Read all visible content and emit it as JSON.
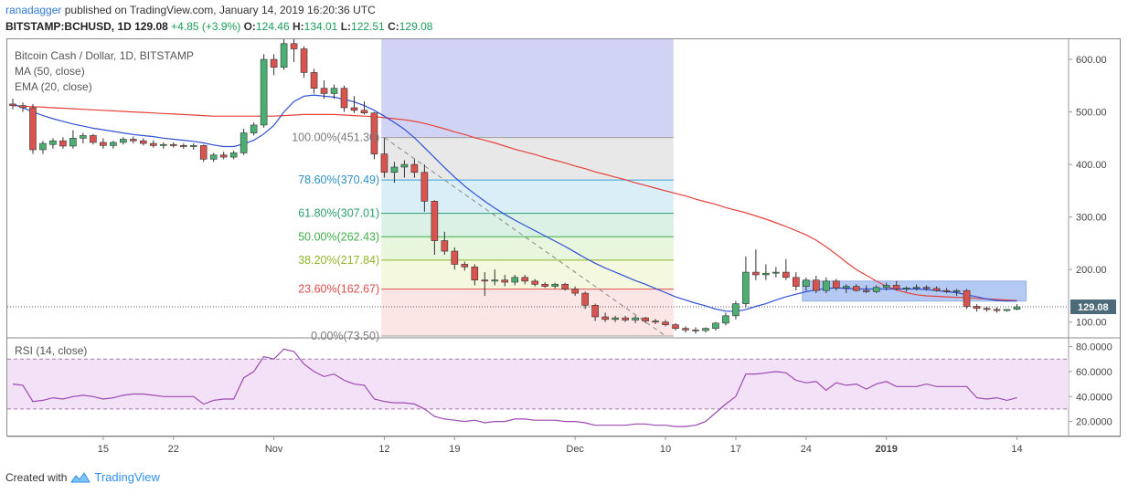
{
  "header": {
    "author": "ranadagger",
    "published_text": "published on TradingView.com, January 14, 2019 16:20:36 UTC",
    "symbol": "BITSTAMP:BCHUSD, 1D",
    "price": "129.08",
    "change": "+4.85 (+3.9%)",
    "ohlc": [
      {
        "k": "O:",
        "v": "124.46"
      },
      {
        "k": "H:",
        "v": "134.01"
      },
      {
        "k": "L:",
        "v": "122.51"
      },
      {
        "k": "C:",
        "v": "129.08"
      }
    ]
  },
  "legend": {
    "title": "Bitcoin Cash / Dollar, 1D, BITSTAMP",
    "ma": "MA (50, close)",
    "ema": "EMA (20, close)",
    "rsi": "RSI (14, close)"
  },
  "footer": {
    "created_with": "Created with",
    "brand": "TradingView"
  },
  "colors": {
    "up": "#4caf72",
    "down": "#d9534f",
    "ma": "#e8413a",
    "ema": "#2f4fd8",
    "rsi": "#9c4ab0",
    "fib_band": "#b9bbef",
    "range_box": "#7aa0e8"
  },
  "chart_data": [
    {
      "type": "candlestick",
      "title": "Bitcoin Cash / Dollar, 1D, BITSTAMP",
      "ylim": [
        70,
        640
      ],
      "y_ticks": [
        100,
        200,
        300,
        400,
        500,
        600
      ],
      "y_tick_labels": [
        "100.00",
        "200.00",
        "300.00",
        "400.00",
        "500.00",
        "600.00"
      ],
      "x_ticks": [
        {
          "i": 9,
          "label": "15"
        },
        {
          "i": 16,
          "label": "22"
        },
        {
          "i": 26,
          "label": "Nov"
        },
        {
          "i": 37,
          "label": "12"
        },
        {
          "i": 44,
          "label": "19"
        },
        {
          "i": 56,
          "label": "Dec"
        },
        {
          "i": 65,
          "label": "10"
        },
        {
          "i": 72,
          "label": "17"
        },
        {
          "i": 79,
          "label": "24"
        },
        {
          "i": 87,
          "label": "2019"
        },
        {
          "i": 100,
          "label": "14"
        }
      ],
      "last_price_label": "129.08",
      "last_price": 129.08,
      "candles": [
        {
          "o": 515,
          "h": 525,
          "l": 505,
          "c": 512
        },
        {
          "o": 512,
          "h": 518,
          "l": 500,
          "c": 508
        },
        {
          "o": 508,
          "h": 515,
          "l": 420,
          "c": 428
        },
        {
          "o": 428,
          "h": 445,
          "l": 420,
          "c": 440
        },
        {
          "o": 438,
          "h": 450,
          "l": 430,
          "c": 445
        },
        {
          "o": 445,
          "h": 452,
          "l": 430,
          "c": 435
        },
        {
          "o": 435,
          "h": 465,
          "l": 430,
          "c": 450
        },
        {
          "o": 450,
          "h": 460,
          "l": 440,
          "c": 455
        },
        {
          "o": 455,
          "h": 458,
          "l": 438,
          "c": 442
        },
        {
          "o": 442,
          "h": 450,
          "l": 430,
          "c": 436
        },
        {
          "o": 436,
          "h": 445,
          "l": 430,
          "c": 442
        },
        {
          "o": 442,
          "h": 452,
          "l": 438,
          "c": 448
        },
        {
          "o": 448,
          "h": 453,
          "l": 440,
          "c": 445
        },
        {
          "o": 445,
          "h": 450,
          "l": 436,
          "c": 440
        },
        {
          "o": 440,
          "h": 446,
          "l": 432,
          "c": 436
        },
        {
          "o": 436,
          "h": 442,
          "l": 430,
          "c": 438
        },
        {
          "o": 438,
          "h": 442,
          "l": 432,
          "c": 436
        },
        {
          "o": 436,
          "h": 440,
          "l": 430,
          "c": 434
        },
        {
          "o": 434,
          "h": 440,
          "l": 428,
          "c": 436
        },
        {
          "o": 436,
          "h": 438,
          "l": 405,
          "c": 410
        },
        {
          "o": 410,
          "h": 422,
          "l": 405,
          "c": 418
        },
        {
          "o": 418,
          "h": 424,
          "l": 410,
          "c": 414
        },
        {
          "o": 414,
          "h": 426,
          "l": 410,
          "c": 422
        },
        {
          "o": 422,
          "h": 468,
          "l": 418,
          "c": 460
        },
        {
          "o": 460,
          "h": 480,
          "l": 455,
          "c": 475
        },
        {
          "o": 475,
          "h": 610,
          "l": 470,
          "c": 600
        },
        {
          "o": 600,
          "h": 610,
          "l": 570,
          "c": 585
        },
        {
          "o": 585,
          "h": 640,
          "l": 580,
          "c": 630
        },
        {
          "o": 630,
          "h": 640,
          "l": 595,
          "c": 620
        },
        {
          "o": 620,
          "h": 625,
          "l": 565,
          "c": 575
        },
        {
          "o": 575,
          "h": 582,
          "l": 535,
          "c": 545
        },
        {
          "o": 545,
          "h": 560,
          "l": 525,
          "c": 535
        },
        {
          "o": 535,
          "h": 552,
          "l": 525,
          "c": 545
        },
        {
          "o": 545,
          "h": 550,
          "l": 500,
          "c": 508
        },
        {
          "o": 508,
          "h": 530,
          "l": 498,
          "c": 503
        },
        {
          "o": 503,
          "h": 520,
          "l": 495,
          "c": 498
        },
        {
          "o": 498,
          "h": 500,
          "l": 410,
          "c": 420
        },
        {
          "o": 420,
          "h": 450,
          "l": 375,
          "c": 385
        },
        {
          "o": 385,
          "h": 405,
          "l": 365,
          "c": 395
        },
        {
          "o": 395,
          "h": 408,
          "l": 375,
          "c": 400
        },
        {
          "o": 400,
          "h": 410,
          "l": 375,
          "c": 385
        },
        {
          "o": 385,
          "h": 400,
          "l": 310,
          "c": 330
        },
        {
          "o": 330,
          "h": 332,
          "l": 228,
          "c": 255
        },
        {
          "o": 255,
          "h": 272,
          "l": 228,
          "c": 235
        },
        {
          "o": 235,
          "h": 242,
          "l": 200,
          "c": 210
        },
        {
          "o": 210,
          "h": 215,
          "l": 198,
          "c": 205
        },
        {
          "o": 205,
          "h": 210,
          "l": 170,
          "c": 180
        },
        {
          "o": 180,
          "h": 195,
          "l": 150,
          "c": 178
        },
        {
          "o": 178,
          "h": 200,
          "l": 170,
          "c": 180
        },
        {
          "o": 180,
          "h": 190,
          "l": 168,
          "c": 176
        },
        {
          "o": 176,
          "h": 190,
          "l": 170,
          "c": 185
        },
        {
          "o": 185,
          "h": 190,
          "l": 172,
          "c": 178
        },
        {
          "o": 178,
          "h": 182,
          "l": 168,
          "c": 172
        },
        {
          "o": 172,
          "h": 176,
          "l": 165,
          "c": 168
        },
        {
          "o": 168,
          "h": 175,
          "l": 164,
          "c": 172
        },
        {
          "o": 172,
          "h": 175,
          "l": 160,
          "c": 163
        },
        {
          "o": 163,
          "h": 168,
          "l": 150,
          "c": 155
        },
        {
          "o": 155,
          "h": 158,
          "l": 125,
          "c": 132
        },
        {
          "o": 132,
          "h": 135,
          "l": 102,
          "c": 110
        },
        {
          "o": 110,
          "h": 118,
          "l": 100,
          "c": 105
        },
        {
          "o": 105,
          "h": 112,
          "l": 100,
          "c": 108
        },
        {
          "o": 108,
          "h": 112,
          "l": 100,
          "c": 104
        },
        {
          "o": 104,
          "h": 112,
          "l": 98,
          "c": 108
        },
        {
          "o": 108,
          "h": 110,
          "l": 98,
          "c": 102
        },
        {
          "o": 102,
          "h": 106,
          "l": 96,
          "c": 100
        },
        {
          "o": 100,
          "h": 104,
          "l": 92,
          "c": 95
        },
        {
          "o": 95,
          "h": 98,
          "l": 84,
          "c": 88
        },
        {
          "o": 88,
          "h": 92,
          "l": 80,
          "c": 85
        },
        {
          "o": 85,
          "h": 90,
          "l": 78,
          "c": 84
        },
        {
          "o": 84,
          "h": 90,
          "l": 80,
          "c": 88
        },
        {
          "o": 88,
          "h": 100,
          "l": 84,
          "c": 98
        },
        {
          "o": 98,
          "h": 118,
          "l": 94,
          "c": 112
        },
        {
          "o": 112,
          "h": 140,
          "l": 105,
          "c": 135
        },
        {
          "o": 135,
          "h": 225,
          "l": 128,
          "c": 195
        },
        {
          "o": 195,
          "h": 238,
          "l": 180,
          "c": 190
        },
        {
          "o": 190,
          "h": 210,
          "l": 180,
          "c": 193
        },
        {
          "o": 193,
          "h": 205,
          "l": 185,
          "c": 195
        },
        {
          "o": 195,
          "h": 220,
          "l": 180,
          "c": 185
        },
        {
          "o": 185,
          "h": 195,
          "l": 160,
          "c": 168
        },
        {
          "o": 168,
          "h": 185,
          "l": 160,
          "c": 180
        },
        {
          "o": 180,
          "h": 188,
          "l": 155,
          "c": 160
        },
        {
          "o": 160,
          "h": 185,
          "l": 155,
          "c": 178
        },
        {
          "o": 178,
          "h": 182,
          "l": 160,
          "c": 165
        },
        {
          "o": 165,
          "h": 172,
          "l": 155,
          "c": 168
        },
        {
          "o": 168,
          "h": 172,
          "l": 158,
          "c": 160
        },
        {
          "o": 160,
          "h": 170,
          "l": 155,
          "c": 158
        },
        {
          "o": 158,
          "h": 170,
          "l": 155,
          "c": 166
        },
        {
          "o": 166,
          "h": 175,
          "l": 160,
          "c": 170
        },
        {
          "o": 170,
          "h": 178,
          "l": 160,
          "c": 163
        },
        {
          "o": 163,
          "h": 168,
          "l": 158,
          "c": 165
        },
        {
          "o": 165,
          "h": 172,
          "l": 160,
          "c": 166
        },
        {
          "o": 166,
          "h": 170,
          "l": 160,
          "c": 164
        },
        {
          "o": 164,
          "h": 168,
          "l": 158,
          "c": 160
        },
        {
          "o": 160,
          "h": 165,
          "l": 155,
          "c": 158
        },
        {
          "o": 158,
          "h": 163,
          "l": 150,
          "c": 160
        },
        {
          "o": 160,
          "h": 163,
          "l": 125,
          "c": 130
        },
        {
          "o": 130,
          "h": 134,
          "l": 120,
          "c": 126
        },
        {
          "o": 126,
          "h": 130,
          "l": 120,
          "c": 124
        },
        {
          "o": 124,
          "h": 128,
          "l": 118,
          "c": 122
        },
        {
          "o": 122,
          "h": 124,
          "l": 120,
          "c": 124
        },
        {
          "o": 124.46,
          "h": 134.01,
          "l": 122.51,
          "c": 129.08
        }
      ],
      "ma_50": [
        512,
        511,
        510,
        509,
        508,
        507,
        506,
        505,
        504,
        503,
        502,
        501,
        500,
        499,
        498,
        497,
        496,
        495,
        494,
        493,
        492,
        492,
        492,
        492,
        492,
        492,
        492,
        493,
        494,
        495,
        495,
        495,
        495,
        494,
        493,
        492,
        491,
        489,
        487,
        485,
        482,
        478,
        473,
        468,
        462,
        457,
        451,
        446,
        441,
        435,
        429,
        424,
        419,
        413,
        408,
        403,
        397,
        392,
        386,
        381,
        376,
        371,
        365,
        360,
        355,
        350,
        345,
        340,
        334,
        329,
        324,
        318,
        313,
        308,
        302,
        296,
        289,
        282,
        274,
        266,
        256,
        243,
        229,
        214,
        200,
        189,
        178,
        168,
        161,
        156,
        152,
        150,
        149,
        148,
        147,
        147,
        145,
        144,
        143,
        142,
        141
      ],
      "ema_20": [
        515,
        508,
        500,
        493,
        487,
        482,
        477,
        473,
        469,
        466,
        463,
        460,
        457,
        455,
        453,
        450,
        448,
        446,
        444,
        441,
        437,
        434,
        434,
        439,
        446,
        458,
        474,
        500,
        520,
        530,
        532,
        530,
        528,
        524,
        519,
        512,
        503,
        492,
        480,
        467,
        451,
        432,
        413,
        394,
        376,
        359,
        344,
        330,
        317,
        305,
        294,
        284,
        274,
        264,
        254,
        244,
        233,
        222,
        212,
        203,
        195,
        187,
        179,
        172,
        164,
        156,
        148,
        142,
        136,
        131,
        125,
        121,
        120,
        124,
        130,
        135,
        142,
        148,
        153,
        158,
        161,
        164,
        165,
        164,
        163,
        163,
        163,
        163,
        163,
        163,
        163,
        162,
        160,
        158,
        156,
        152,
        148,
        144,
        141,
        140,
        140
      ],
      "fibonacci": [
        {
          "label": "100.00%(451.30)",
          "value": 451.3,
          "fill": "#e4e4e4",
          "line": "#9e9e9e",
          "text": "#7a7a7a"
        },
        {
          "label": "78.60%(370.49)",
          "value": 370.49,
          "fill": "#d2ebf6",
          "line": "#3aa3d8",
          "text": "#2f8fc4"
        },
        {
          "label": "61.80%(307.01)",
          "value": 307.01,
          "fill": "#d6efe1",
          "line": "#2e9e6f",
          "text": "#2e9e6f"
        },
        {
          "label": "50.00%(262.43)",
          "value": 262.43,
          "fill": "#e3f4d6",
          "line": "#3fae4a",
          "text": "#3fae4a"
        },
        {
          "label": "38.20%(217.84)",
          "value": 217.84,
          "fill": "#f1f7d8",
          "line": "#8fb52a",
          "text": "#8fb52a"
        },
        {
          "label": "23.60%(162.67)",
          "value": 162.67,
          "fill": "#fbe2e0",
          "line": "#e05050",
          "text": "#d94c4c"
        },
        {
          "label": "0.00%(73.50)",
          "value": 73.5,
          "fill": null,
          "line": "#9e9e9e",
          "text": "#7a7a7a"
        }
      ],
      "fib_range_index": [
        36.7,
        65.8
      ],
      "selection_band_index": [
        36.7,
        65.8
      ],
      "trend_line": {
        "from": {
          "i": 37,
          "v": 451.3
        },
        "to": {
          "i": 65,
          "v": 73.5
        }
      },
      "range_box": {
        "from_i": 79,
        "to_i": 100,
        "top": 178,
        "bottom": 140
      }
    },
    {
      "type": "line",
      "title": "RSI (14, close)",
      "ylim": [
        8,
        87
      ],
      "y_ticks": [
        20,
        40,
        60,
        80
      ],
      "y_tick_labels": [
        "20.0000",
        "40.0000",
        "60.0000",
        "80.0000"
      ],
      "band": [
        30,
        70
      ],
      "values": [
        50,
        49,
        36,
        37,
        39,
        38,
        40,
        41,
        40,
        38,
        39,
        41,
        42,
        42,
        41,
        40,
        40,
        40,
        40,
        34,
        37,
        38,
        38,
        55,
        60,
        72,
        70,
        78,
        76,
        66,
        60,
        56,
        58,
        53,
        50,
        49,
        38,
        36,
        35,
        35,
        34,
        30,
        24,
        22,
        21,
        20,
        21,
        19,
        20,
        20,
        22,
        22,
        21,
        21,
        21,
        20,
        20,
        19,
        17,
        17,
        17,
        17,
        18,
        18,
        17,
        17,
        16,
        16,
        17,
        20,
        27,
        34,
        40,
        58,
        58,
        59,
        60,
        59,
        53,
        51,
        52,
        45,
        51,
        49,
        50,
        46,
        50,
        52,
        48,
        48,
        48,
        50,
        48,
        48,
        48,
        48,
        39,
        38,
        39,
        37,
        39
      ]
    }
  ]
}
